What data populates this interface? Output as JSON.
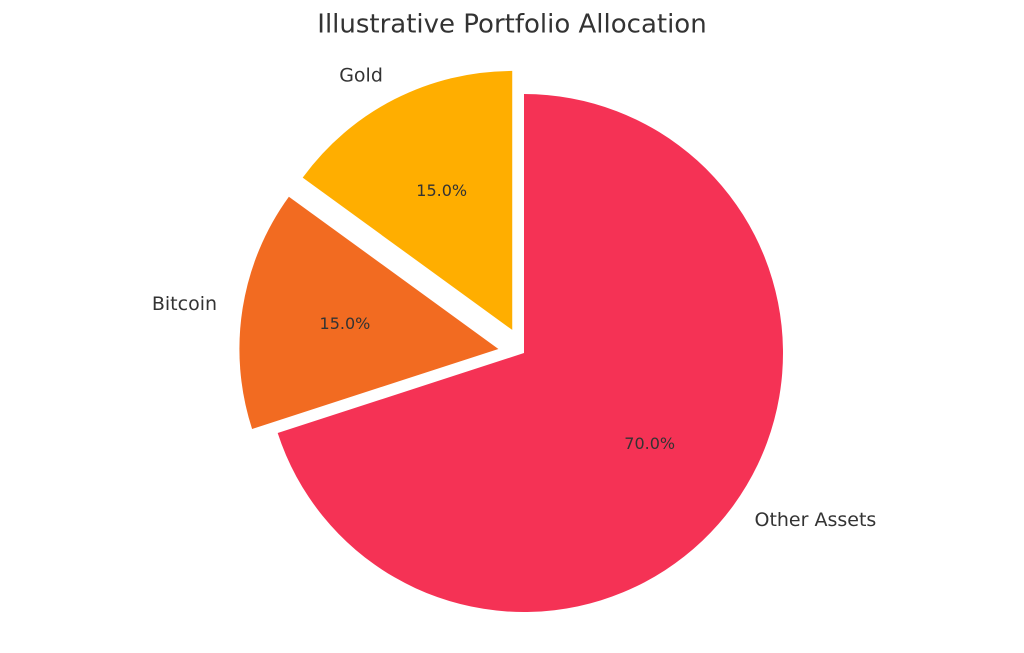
{
  "chart_data": {
    "type": "pie",
    "title": "Illustrative Portfolio Allocation",
    "categories": [
      "Gold",
      "Bitcoin",
      "Other Assets"
    ],
    "values": [
      15,
      15,
      70
    ],
    "value_labels": [
      "15.0%",
      "15.0%",
      "70.0%"
    ],
    "colors": [
      "#ffae00",
      "#f26b21",
      "#f53255"
    ],
    "explode": [
      0.1,
      0.1,
      0
    ],
    "start_angle": 90
  }
}
